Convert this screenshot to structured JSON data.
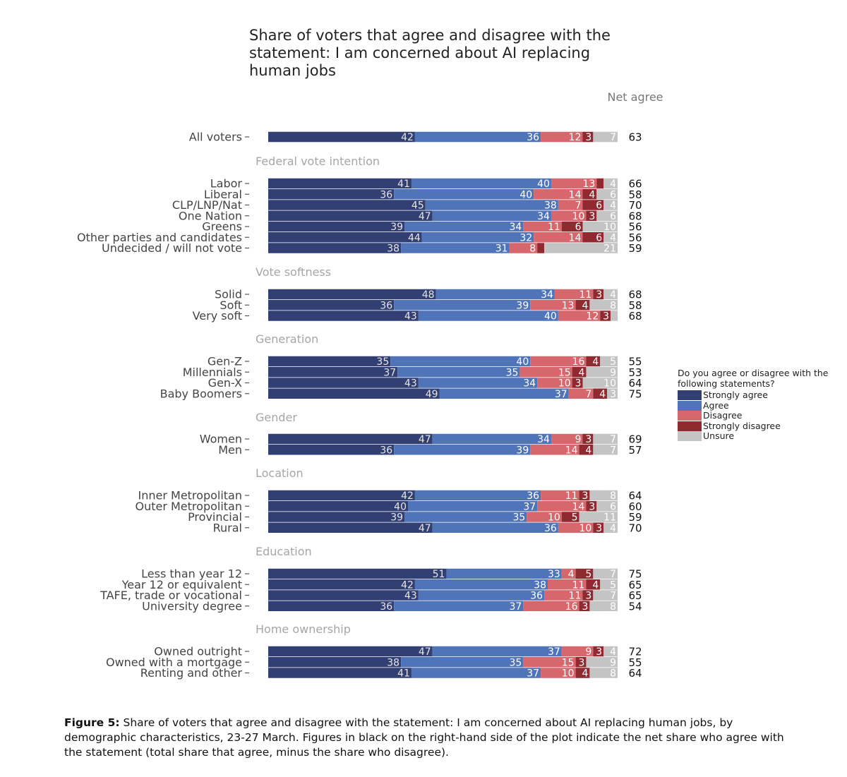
{
  "title": "Share of voters that agree and disagree with the statement: I am concerned about AI replacing human jobs",
  "net_header": "Net agree",
  "legend": {
    "title": "Do you agree or disagree with the following statements?",
    "items": [
      {
        "label": "Strongly agree",
        "color": "#323F73"
      },
      {
        "label": "Agree",
        "color": "#5074B8"
      },
      {
        "label": "Disagree",
        "color": "#D6676D"
      },
      {
        "label": "Strongly disagree",
        "color": "#8E2A30"
      },
      {
        "label": "Unsure",
        "color": "#C4C4C4"
      }
    ]
  },
  "caption": {
    "label": "Figure 5:",
    "text": "Share of voters that agree and disagree with the statement: I am concerned about AI replacing human jobs, by demographic characteristics, 23-27 March. Figures in black on the right-hand side of the plot indicate the net share who agree with the statement (total share that agree, minus the share who disagree)."
  },
  "chart_data": {
    "type": "bar",
    "orientation": "horizontal-stacked",
    "title": "Share of voters that agree and disagree with the statement: I am concerned about AI replacing human jobs",
    "series_names": [
      "Strongly agree",
      "Agree",
      "Disagree",
      "Strongly disagree",
      "Unsure"
    ],
    "xlim": [
      0,
      100
    ],
    "groups": [
      {
        "name": "",
        "rows": [
          {
            "label": "All voters",
            "values": [
              42,
              36,
              12,
              3,
              7
            ],
            "net": 63
          }
        ]
      },
      {
        "name": "Federal vote intention",
        "rows": [
          {
            "label": "Labor",
            "values": [
              41,
              40,
              13,
              2,
              4
            ],
            "net": 66
          },
          {
            "label": "Liberal",
            "values": [
              36,
              40,
              14,
              4,
              6
            ],
            "net": 58
          },
          {
            "label": "CLP/LNP/Nat",
            "values": [
              45,
              38,
              7,
              6,
              4
            ],
            "net": 70
          },
          {
            "label": "One Nation",
            "values": [
              47,
              34,
              10,
              3,
              6
            ],
            "net": 68
          },
          {
            "label": "Greens",
            "values": [
              39,
              34,
              11,
              6,
              10
            ],
            "net": 56
          },
          {
            "label": "Other parties and candidates",
            "values": [
              44,
              32,
              14,
              6,
              4
            ],
            "net": 56
          },
          {
            "label": "Undecided / will not vote",
            "values": [
              38,
              31,
              8,
              2,
              21
            ],
            "net": 59
          }
        ]
      },
      {
        "name": "Vote softness",
        "rows": [
          {
            "label": "Solid",
            "values": [
              48,
              34,
              11,
              3,
              4
            ],
            "net": 68
          },
          {
            "label": "Soft",
            "values": [
              36,
              39,
              13,
              4,
              8
            ],
            "net": 58
          },
          {
            "label": "Very soft",
            "values": [
              43,
              40,
              12,
              3,
              2
            ],
            "net": 68
          }
        ]
      },
      {
        "name": "Generation",
        "rows": [
          {
            "label": "Gen-Z",
            "values": [
              35,
              40,
              16,
              4,
              5
            ],
            "net": 55
          },
          {
            "label": "Millennials",
            "values": [
              37,
              35,
              15,
              4,
              9
            ],
            "net": 53
          },
          {
            "label": "Gen-X",
            "values": [
              43,
              34,
              10,
              3,
              10
            ],
            "net": 64
          },
          {
            "label": "Baby Boomers",
            "values": [
              49,
              37,
              7,
              4,
              3
            ],
            "net": 75
          }
        ]
      },
      {
        "name": "Gender",
        "rows": [
          {
            "label": "Women",
            "values": [
              47,
              34,
              9,
              3,
              7
            ],
            "net": 69
          },
          {
            "label": "Men",
            "values": [
              36,
              39,
              14,
              4,
              7
            ],
            "net": 57
          }
        ]
      },
      {
        "name": "Location",
        "rows": [
          {
            "label": "Inner Metropolitan",
            "values": [
              42,
              36,
              11,
              3,
              8
            ],
            "net": 64
          },
          {
            "label": "Outer Metropolitan",
            "values": [
              40,
              37,
              14,
              3,
              6
            ],
            "net": 60
          },
          {
            "label": "Provincial",
            "values": [
              39,
              35,
              10,
              5,
              11
            ],
            "net": 59
          },
          {
            "label": "Rural",
            "values": [
              47,
              36,
              10,
              3,
              4
            ],
            "net": 70
          }
        ]
      },
      {
        "name": "Education",
        "rows": [
          {
            "label": "Less than year 12",
            "values": [
              51,
              33,
              4,
              5,
              7
            ],
            "net": 75
          },
          {
            "label": "Year 12 or equivalent",
            "values": [
              42,
              38,
              11,
              4,
              5
            ],
            "net": 65
          },
          {
            "label": "TAFE, trade or vocational",
            "values": [
              43,
              36,
              11,
              3,
              7
            ],
            "net": 65
          },
          {
            "label": "University degree",
            "values": [
              36,
              37,
              16,
              3,
              8
            ],
            "net": 54
          }
        ]
      },
      {
        "name": "Home ownership",
        "rows": [
          {
            "label": "Owned outright",
            "values": [
              47,
              37,
              9,
              3,
              4
            ],
            "net": 72
          },
          {
            "label": "Owned with a mortgage",
            "values": [
              38,
              35,
              15,
              3,
              9
            ],
            "net": 55
          },
          {
            "label": "Renting and other",
            "values": [
              41,
              37,
              10,
              4,
              8
            ],
            "net": 64
          }
        ]
      }
    ]
  }
}
